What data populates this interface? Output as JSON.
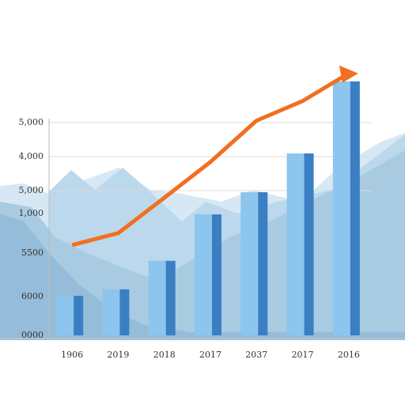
{
  "chart_data": {
    "type": "bar",
    "categories": [
      "1906",
      "2019",
      "2018",
      "2017",
      "2037",
      "2017",
      "2016"
    ],
    "y_axis_labels": [
      "5,000",
      "4,000",
      "5,000",
      "1,000",
      "5500",
      "6000",
      "0000"
    ],
    "ylim": [
      0,
      6200
    ],
    "series": [
      {
        "type": "bar",
        "color": "#8cc5ee",
        "shade": "#3b7fc3",
        "values": [
          930,
          1080,
          1750,
          2840,
          3360,
          4270,
          5960
        ]
      },
      {
        "type": "line",
        "color": "#f07020",
        "values": [
          2120,
          2400,
          3230,
          4070,
          5040,
          5500,
          6150
        ]
      }
    ]
  }
}
